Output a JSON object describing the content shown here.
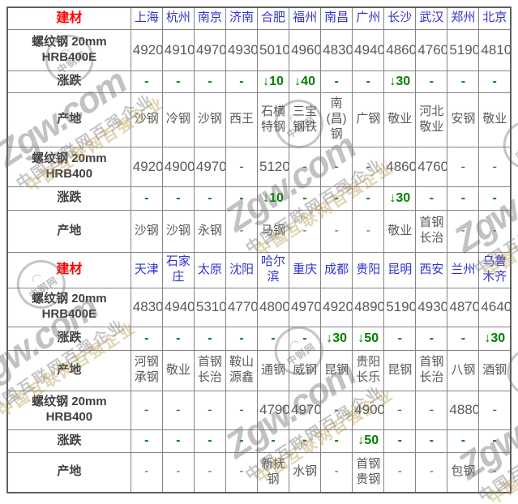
{
  "palette": {
    "red": "#ff0000",
    "blue": "#3333cc",
    "green": "#008000",
    "value_gray": "#595959",
    "label_dark": "#404040",
    "border_gray": "#848484"
  },
  "watermark": {
    "brand": "Zgw.com",
    "logo_text": "中钢网",
    "slogan": "中国互联网百强企业"
  },
  "table": {
    "sections": [
      {
        "header_label": "建材",
        "cities": [
          "上海",
          "杭州",
          "南京",
          "济南",
          "合肥",
          "福州",
          "南昌",
          "广州",
          "长沙",
          "武汉",
          "郑州",
          "北京"
        ],
        "rows": [
          {
            "label": "螺纹钢 20mm\nHRB400E",
            "type": "price",
            "values": [
              "4920",
              "4910",
              "4970",
              "4930",
              "5010",
              "4960",
              "4830",
              "4940",
              "4860",
              "4760",
              "5190",
              "4810"
            ]
          },
          {
            "label": "涨跌",
            "type": "change",
            "values": [
              "-",
              "-",
              "-",
              "-",
              "↓10",
              "↓40",
              "-",
              "-",
              "↓30",
              "-",
              "-",
              "-"
            ]
          },
          {
            "label": "产地",
            "type": "origin",
            "values": [
              "沙钢",
              "冷钢",
              "沙钢",
              "西王",
              "石横特钢",
              "三宝钢铁",
              "南(昌)钢",
              "广钢",
              "敬业",
              "河北敬业",
              "安钢",
              "敬业"
            ]
          },
          {
            "label": "螺纹钢 20mm\nHRB400",
            "type": "price",
            "values": [
              "4920",
              "4900",
              "4970",
              "-",
              "5120",
              "-",
              "-",
              "-",
              "4860",
              "4760",
              "-",
              "-"
            ]
          },
          {
            "label": "涨跌",
            "type": "change",
            "values": [
              "-",
              "-",
              "-",
              "-",
              "↓10",
              "-",
              "-",
              "-",
              "↓30",
              "-",
              "-",
              "-"
            ]
          },
          {
            "label": "产地",
            "type": "origin",
            "values": [
              "沙钢",
              "沙钢",
              "永钢",
              "-",
              "马钢",
              "-",
              "-",
              "-",
              "敬业",
              "首钢长治",
              "-",
              "-"
            ]
          }
        ]
      },
      {
        "header_label": "建材",
        "cities": [
          "天津",
          "石家庄",
          "太原",
          "沈阳",
          "哈尔滨",
          "重庆",
          "成都",
          "贵阳",
          "昆明",
          "西安",
          "兰州",
          "乌鲁木齐"
        ],
        "rows": [
          {
            "label": "螺纹钢 20mm\nHRB400E",
            "type": "price",
            "values": [
              "4830",
              "4940",
              "5310",
              "4770",
              "4800",
              "4970",
              "4920",
              "4890",
              "5190",
              "4930",
              "4870",
              "4640"
            ]
          },
          {
            "label": "涨跌",
            "type": "change",
            "values": [
              "-",
              "-",
              "-",
              "-",
              "-",
              "-",
              "↓30",
              "↓50",
              "-",
              "-",
              "-",
              "↓30"
            ]
          },
          {
            "label": "产地",
            "type": "origin",
            "values": [
              "河钢承钢",
              "敬业",
              "首钢长治",
              "鞍山源鑫",
              "通钢",
              "威钢",
              "昆钢",
              "贵阳长乐",
              "昆钢",
              "首钢长治",
              "八钢",
              "酒钢"
            ]
          },
          {
            "label": "螺纹钢 20mm\nHRB400",
            "type": "price",
            "values": [
              "-",
              "-",
              "-",
              "-",
              "4790",
              "4970",
              "-",
              "4900",
              "-",
              "-",
              "4880",
              "-"
            ]
          },
          {
            "label": "涨跌",
            "type": "change",
            "values": [
              "-",
              "-",
              "-",
              "-",
              "-",
              "-",
              "-",
              "↓50",
              "-",
              "-",
              "-",
              "-"
            ]
          },
          {
            "label": "产地",
            "type": "origin",
            "values": [
              "-",
              "-",
              "-",
              "-",
              "新抚钢",
              "水钢",
              "-",
              "首钢贵钢",
              "-",
              "-",
              "包钢",
              "-"
            ]
          }
        ]
      }
    ]
  }
}
